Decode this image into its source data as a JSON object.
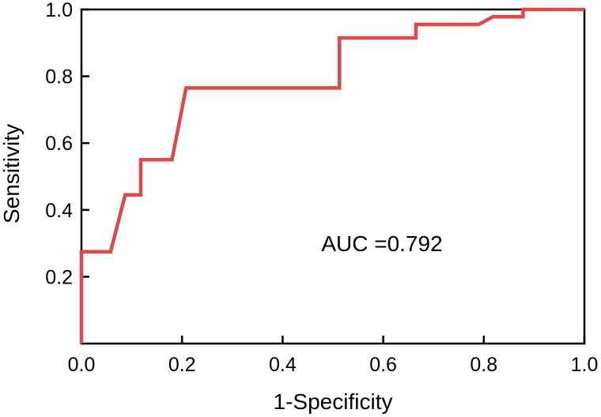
{
  "chart_data": {
    "type": "line",
    "title": "",
    "xlabel": "1-Specificity",
    "ylabel": "Sensitivity",
    "xlim": [
      0.0,
      1.0
    ],
    "ylim": [
      0.0,
      1.0
    ],
    "x_ticks": [
      "0.0",
      "0.2",
      "0.4",
      "0.6",
      "0.8",
      "1.0"
    ],
    "y_ticks": [
      "0.2",
      "0.4",
      "0.6",
      "0.8",
      "1.0"
    ],
    "grid": false,
    "annotation": "AUC =0.792",
    "series": [
      {
        "color": "#e04848",
        "x": [
          0.0,
          0.0,
          0.058,
          0.087,
          0.095,
          0.118,
          0.118,
          0.18,
          0.208,
          0.208,
          0.513,
          0.513,
          0.665,
          0.665,
          0.79,
          0.818,
          0.878,
          0.878,
          1.0
        ],
        "y": [
          0.0,
          0.275,
          0.275,
          0.445,
          0.445,
          0.445,
          0.55,
          0.55,
          0.765,
          0.765,
          0.765,
          0.915,
          0.915,
          0.955,
          0.955,
          0.978,
          0.978,
          1.0,
          1.0
        ]
      }
    ]
  }
}
